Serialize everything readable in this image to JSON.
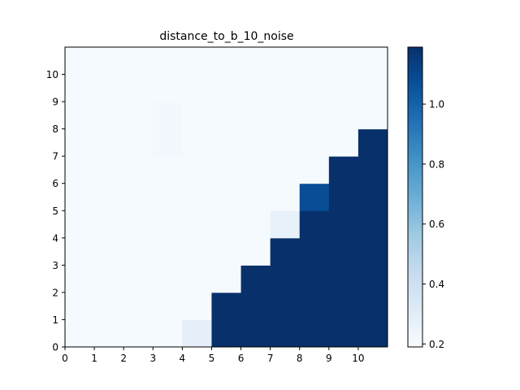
{
  "chart_data": {
    "type": "heatmap",
    "title": "distance_to_b_10_noise",
    "xlabel": "",
    "ylabel": "",
    "x_ticks": [
      "0",
      "1",
      "2",
      "3",
      "4",
      "5",
      "6",
      "7",
      "8",
      "9",
      "10"
    ],
    "y_ticks": [
      "0",
      "1",
      "2",
      "3",
      "4",
      "5",
      "6",
      "7",
      "8",
      "9",
      "10"
    ],
    "xlim": [
      0,
      11
    ],
    "ylim": [
      0,
      11
    ],
    "grid": false,
    "colormap": "Blues",
    "colorbar": {
      "min": 0.19,
      "max": 1.19,
      "ticks": [
        "0.2",
        "0.4",
        "0.6",
        "0.8",
        "1.0"
      ]
    },
    "rows_bottom_to_top": [
      [
        0.2,
        0.2,
        0.2,
        0.2,
        0.28,
        1.19,
        1.19,
        1.19,
        1.19,
        1.19,
        1.19
      ],
      [
        0.2,
        0.2,
        0.2,
        0.2,
        0.2,
        1.19,
        1.19,
        1.19,
        1.19,
        1.19,
        1.19
      ],
      [
        0.2,
        0.2,
        0.2,
        0.2,
        0.2,
        0.2,
        1.19,
        1.19,
        1.19,
        1.19,
        1.19
      ],
      [
        0.2,
        0.2,
        0.2,
        0.2,
        0.2,
        0.2,
        0.2,
        1.19,
        1.19,
        1.19,
        1.19
      ],
      [
        0.2,
        0.2,
        0.2,
        0.2,
        0.2,
        0.2,
        0.2,
        0.27,
        1.19,
        1.19,
        1.19
      ],
      [
        0.2,
        0.2,
        0.2,
        0.2,
        0.2,
        0.2,
        0.2,
        0.2,
        1.08,
        1.19,
        1.19
      ],
      [
        0.2,
        0.2,
        0.2,
        0.2,
        0.2,
        0.2,
        0.2,
        0.2,
        0.2,
        1.19,
        1.19
      ],
      [
        0.2,
        0.2,
        0.2,
        0.21,
        0.2,
        0.2,
        0.2,
        0.2,
        0.2,
        0.2,
        1.19
      ],
      [
        0.2,
        0.2,
        0.2,
        0.21,
        0.2,
        0.2,
        0.2,
        0.2,
        0.2,
        0.2,
        0.2
      ],
      [
        0.2,
        0.2,
        0.2,
        0.2,
        0.2,
        0.2,
        0.2,
        0.2,
        0.2,
        0.2,
        0.2
      ],
      [
        0.2,
        0.2,
        0.2,
        0.2,
        0.2,
        0.2,
        0.2,
        0.2,
        0.2,
        0.2,
        0.2
      ]
    ]
  }
}
